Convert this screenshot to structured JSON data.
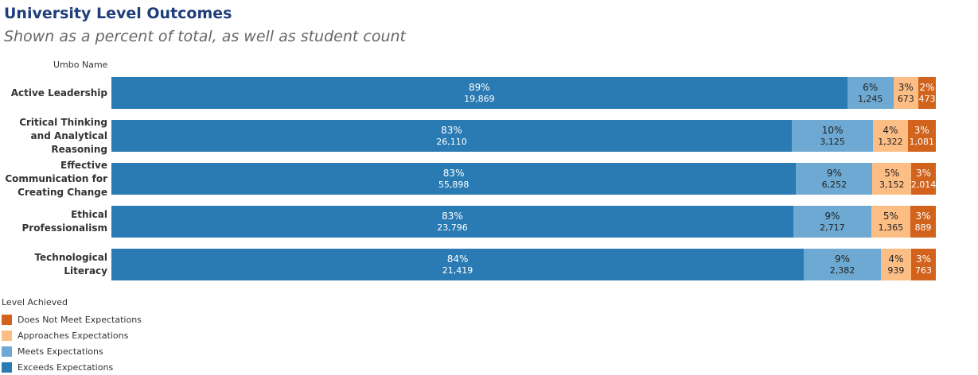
{
  "title": "University Level Outcomes",
  "subtitle": "Shown as a percent of total, as well as student count",
  "chart_data": {
    "type": "bar",
    "orientation": "horizontal-stacked-100",
    "row_header": "Umbo Name",
    "categories": [
      "Active Leadership",
      "Critical Thinking and Analytical Reasoning",
      "Effective Communication for Creating Change",
      "Ethical Professionalism",
      "Technological Literacy"
    ],
    "series": [
      {
        "name": "Exceeds Expectations",
        "color": "#2a7bb3",
        "percents": [
          "89%",
          "83%",
          "83%",
          "83%",
          "84%"
        ],
        "values": [
          19869,
          26110,
          55898,
          23796,
          21419
        ],
        "labels": [
          "19,869",
          "26,110",
          "55,898",
          "23,796",
          "21,419"
        ],
        "text_color": "#ffffff"
      },
      {
        "name": "Meets Expectations",
        "color": "#6da9d2",
        "percents": [
          "6%",
          "10%",
          "9%",
          "9%",
          "9%"
        ],
        "values": [
          1245,
          3125,
          6252,
          2717,
          2382
        ],
        "labels": [
          "1,245",
          "3,125",
          "6,252",
          "2,717",
          "2,382"
        ],
        "text_color": "#222222"
      },
      {
        "name": "Approaches Expectations",
        "color": "#fdbe85",
        "percents": [
          "3%",
          "4%",
          "5%",
          "5%",
          "4%"
        ],
        "values": [
          673,
          1322,
          3152,
          1365,
          939
        ],
        "labels": [
          "673",
          "1,322",
          "3,152",
          "1,365",
          "939"
        ],
        "text_color": "#222222"
      },
      {
        "name": "Does Not Meet Expectations",
        "color": "#d1631d",
        "percents": [
          "2%",
          "3%",
          "3%",
          "3%",
          "3%"
        ],
        "values": [
          473,
          1081,
          2014,
          889,
          763
        ],
        "labels": [
          "473",
          "1,081",
          "2,014",
          "889",
          "763"
        ],
        "text_color": "#ffffff"
      }
    ],
    "legend": {
      "title": "Level Achieved",
      "placement": "bottom-left",
      "order": [
        "Does Not Meet Expectations",
        "Approaches Expectations",
        "Meets Expectations",
        "Exceeds Expectations"
      ]
    }
  }
}
